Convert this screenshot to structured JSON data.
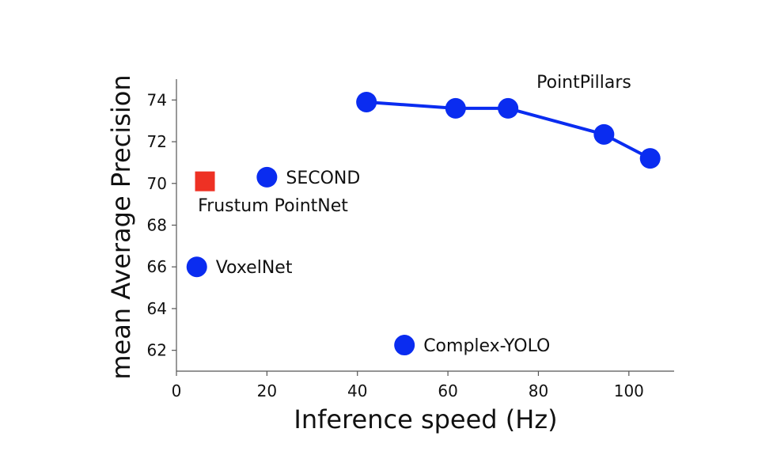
{
  "chart_data": {
    "type": "scatter",
    "xlabel": "Inference speed (Hz)",
    "ylabel": "mean Average Precision",
    "xlim": [
      0,
      110
    ],
    "ylim": [
      61,
      75
    ],
    "xticks": [
      0,
      20,
      40,
      60,
      80,
      100
    ],
    "yticks": [
      62,
      64,
      66,
      68,
      70,
      72,
      74
    ],
    "grid": false,
    "colors": {
      "blue": "#0a2cf0",
      "red": "#ee3124"
    },
    "series": [
      {
        "name": "PointPillars",
        "marker": "circle",
        "line": true,
        "x": [
          42,
          61.7,
          73.3,
          94.5,
          104.7
        ],
        "y": [
          73.9,
          73.6,
          73.6,
          72.35,
          71.2
        ]
      },
      {
        "name": "SECOND",
        "marker": "circle",
        "line": false,
        "x": [
          20
        ],
        "y": [
          70.3
        ]
      },
      {
        "name": "VoxelNet",
        "marker": "circle",
        "line": false,
        "x": [
          4.5
        ],
        "y": [
          66.0
        ]
      },
      {
        "name": "Complex-YOLO",
        "marker": "circle",
        "line": false,
        "x": [
          50.4
        ],
        "y": [
          62.25
        ]
      },
      {
        "name": "Frustum PointNet",
        "marker": "square",
        "line": false,
        "x": [
          6.3
        ],
        "y": [
          70.1
        ]
      }
    ]
  }
}
